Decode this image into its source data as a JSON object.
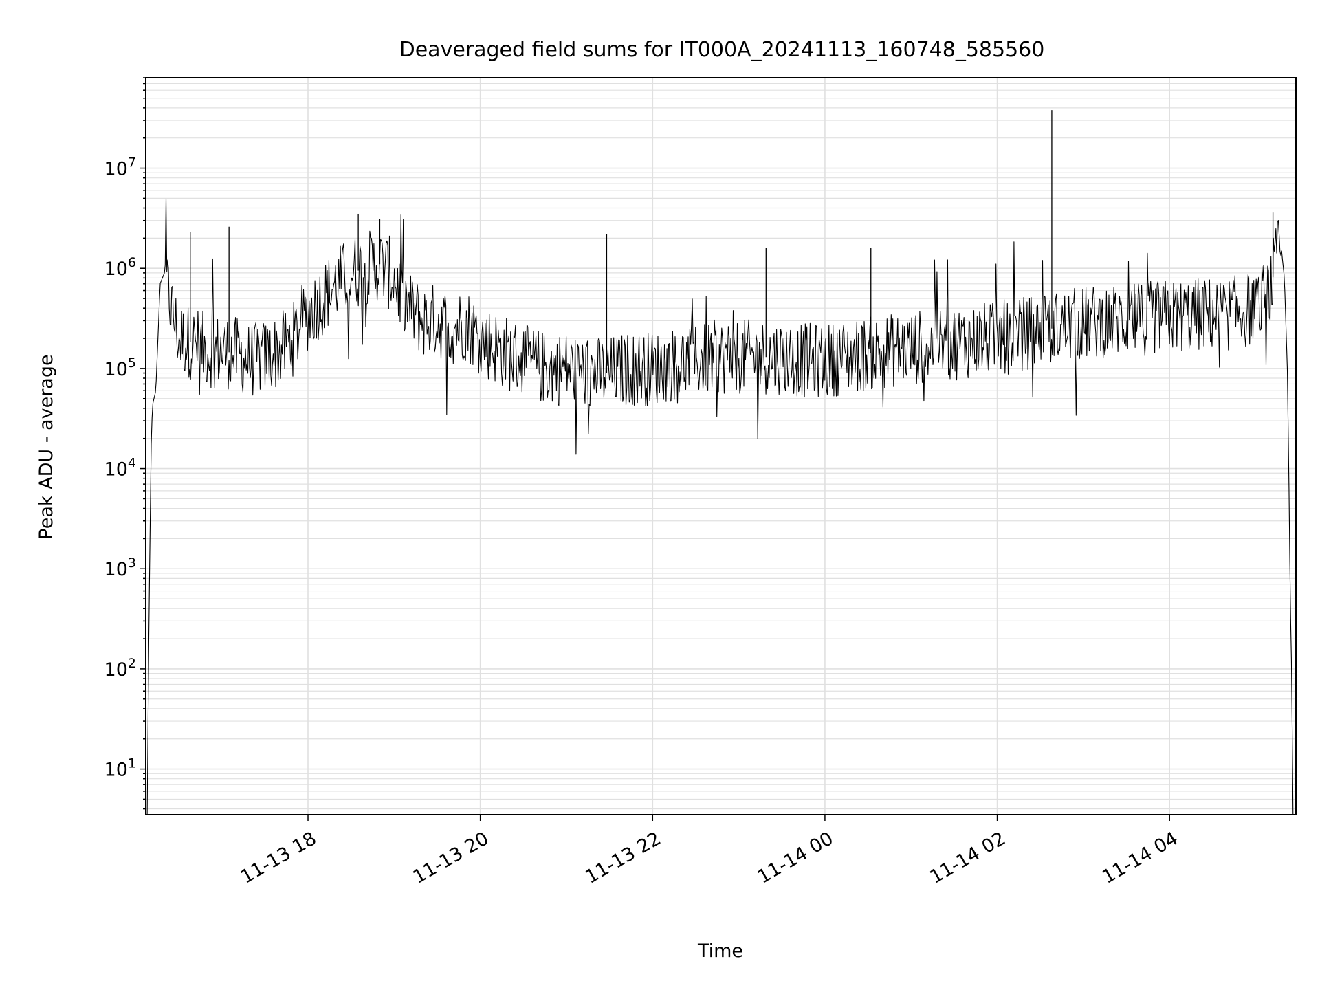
{
  "chart_data": {
    "type": "line",
    "title": "Deaveraged field sums for IT000A_20241113_160748_585560",
    "xlabel": "Time",
    "ylabel": "Peak ADU - average",
    "yscale": "log",
    "ylim": [
      3.5,
      80000000
    ],
    "xlim": [
      "2024-11-13 16:07",
      "2024-11-14 05:28"
    ],
    "grid": true,
    "line_color": "#000000",
    "grid_color": "#e0e0e0",
    "x_ticks": [
      {
        "t": "2024-11-13 18:00",
        "label": "11-13 18"
      },
      {
        "t": "2024-11-13 20:00",
        "label": "11-13 20"
      },
      {
        "t": "2024-11-13 22:00",
        "label": "11-13 22"
      },
      {
        "t": "2024-11-14 00:00",
        "label": "11-14 00"
      },
      {
        "t": "2024-11-14 02:00",
        "label": "11-14 02"
      },
      {
        "t": "2024-11-14 04:00",
        "label": "11-14 04"
      }
    ],
    "y_ticks": [
      {
        "value": 10,
        "base": "10",
        "exp": "1"
      },
      {
        "value": 100,
        "base": "10",
        "exp": "2"
      },
      {
        "value": 1000,
        "base": "10",
        "exp": "3"
      },
      {
        "value": 10000,
        "base": "10",
        "exp": "4"
      },
      {
        "value": 100000,
        "base": "10",
        "exp": "5"
      },
      {
        "value": 1000000,
        "base": "10",
        "exp": "6"
      },
      {
        "value": 10000000,
        "base": "10",
        "exp": "7"
      }
    ],
    "series": [
      {
        "x": [
          "2024-11-13 16:08",
          "2024-11-13 16:09",
          "2024-11-13 16:10",
          "2024-11-13 16:11",
          "2024-11-13 16:12",
          "2024-11-13 16:14",
          "2024-11-13 16:17",
          "2024-11-13 16:20",
          "2024-11-13 16:25",
          "2024-11-13 16:30",
          "2024-11-13 16:40",
          "2024-11-13 16:50",
          "2024-11-13 17:00",
          "2024-11-13 17:10",
          "2024-11-13 17:20",
          "2024-11-13 17:30",
          "2024-11-13 17:40",
          "2024-11-13 17:50",
          "2024-11-13 18:00",
          "2024-11-13 18:10",
          "2024-11-13 18:20",
          "2024-11-13 18:30",
          "2024-11-13 18:40",
          "2024-11-13 18:50",
          "2024-11-13 19:00",
          "2024-11-13 19:10",
          "2024-11-13 19:20",
          "2024-11-13 19:30",
          "2024-11-13 19:40",
          "2024-11-13 19:50",
          "2024-11-13 20:00",
          "2024-11-13 20:15",
          "2024-11-13 20:30",
          "2024-11-13 20:45",
          "2024-11-13 21:00",
          "2024-11-13 21:15",
          "2024-11-13 21:30",
          "2024-11-13 21:45",
          "2024-11-13 22:00",
          "2024-11-13 22:15",
          "2024-11-13 22:30",
          "2024-11-13 22:45",
          "2024-11-13 23:00",
          "2024-11-13 23:15",
          "2024-11-13 23:30",
          "2024-11-13 23:45",
          "2024-11-14 00:00",
          "2024-11-14 00:15",
          "2024-11-14 00:30",
          "2024-11-14 00:45",
          "2024-11-14 01:00",
          "2024-11-14 01:15",
          "2024-11-14 01:30",
          "2024-11-14 01:45",
          "2024-11-14 02:00",
          "2024-11-14 02:15",
          "2024-11-14 02:30",
          "2024-11-14 02:45",
          "2024-11-14 03:00",
          "2024-11-14 03:15",
          "2024-11-14 03:30",
          "2024-11-14 03:45",
          "2024-11-14 04:00",
          "2024-11-14 04:15",
          "2024-11-14 04:30",
          "2024-11-14 04:45",
          "2024-11-14 05:00",
          "2024-11-14 05:10",
          "2024-11-14 05:15",
          "2024-11-14 05:18",
          "2024-11-14 05:20",
          "2024-11-14 05:22",
          "2024-11-14 05:23",
          "2024-11-14 05:24",
          "2024-11-14 05:25",
          "2024-11-14 05:26"
        ],
        "y": [
          3.5,
          140,
          2500,
          25000,
          45000,
          60000,
          700000,
          900000,
          400000,
          200000,
          180000,
          150000,
          150000,
          140000,
          120000,
          130000,
          150000,
          200000,
          350000,
          500000,
          700000,
          900000,
          1000000,
          1100000,
          800000,
          400000,
          300000,
          300000,
          250000,
          280000,
          200000,
          150000,
          120000,
          100000,
          100000,
          90000,
          90000,
          100000,
          100000,
          110000,
          120000,
          130000,
          130000,
          130000,
          130000,
          120000,
          120000,
          130000,
          140000,
          150000,
          160000,
          170000,
          180000,
          190000,
          200000,
          220000,
          240000,
          260000,
          280000,
          300000,
          300000,
          320000,
          330000,
          340000,
          350000,
          360000,
          400000,
          600000,
          1300000,
          1500000,
          800000,
          100000,
          10000,
          500,
          100,
          3.5
        ],
        "spikes": [
          {
            "t": "2024-11-13 16:38",
            "value": 2300000
          },
          {
            "t": "2024-11-13 17:05",
            "value": 2600000
          },
          {
            "t": "2024-11-13 18:35",
            "value": 3500000
          },
          {
            "t": "2024-11-13 18:50",
            "value": 3100000
          },
          {
            "t": "2024-11-13 21:28",
            "value": 2200000
          },
          {
            "t": "2024-11-13 23:19",
            "value": 1600000
          },
          {
            "t": "2024-11-14 00:32",
            "value": 1600000
          },
          {
            "t": "2024-11-14 02:38",
            "value": 38000000
          },
          {
            "t": "2024-11-14 05:12",
            "value": 3600000
          }
        ]
      }
    ]
  }
}
